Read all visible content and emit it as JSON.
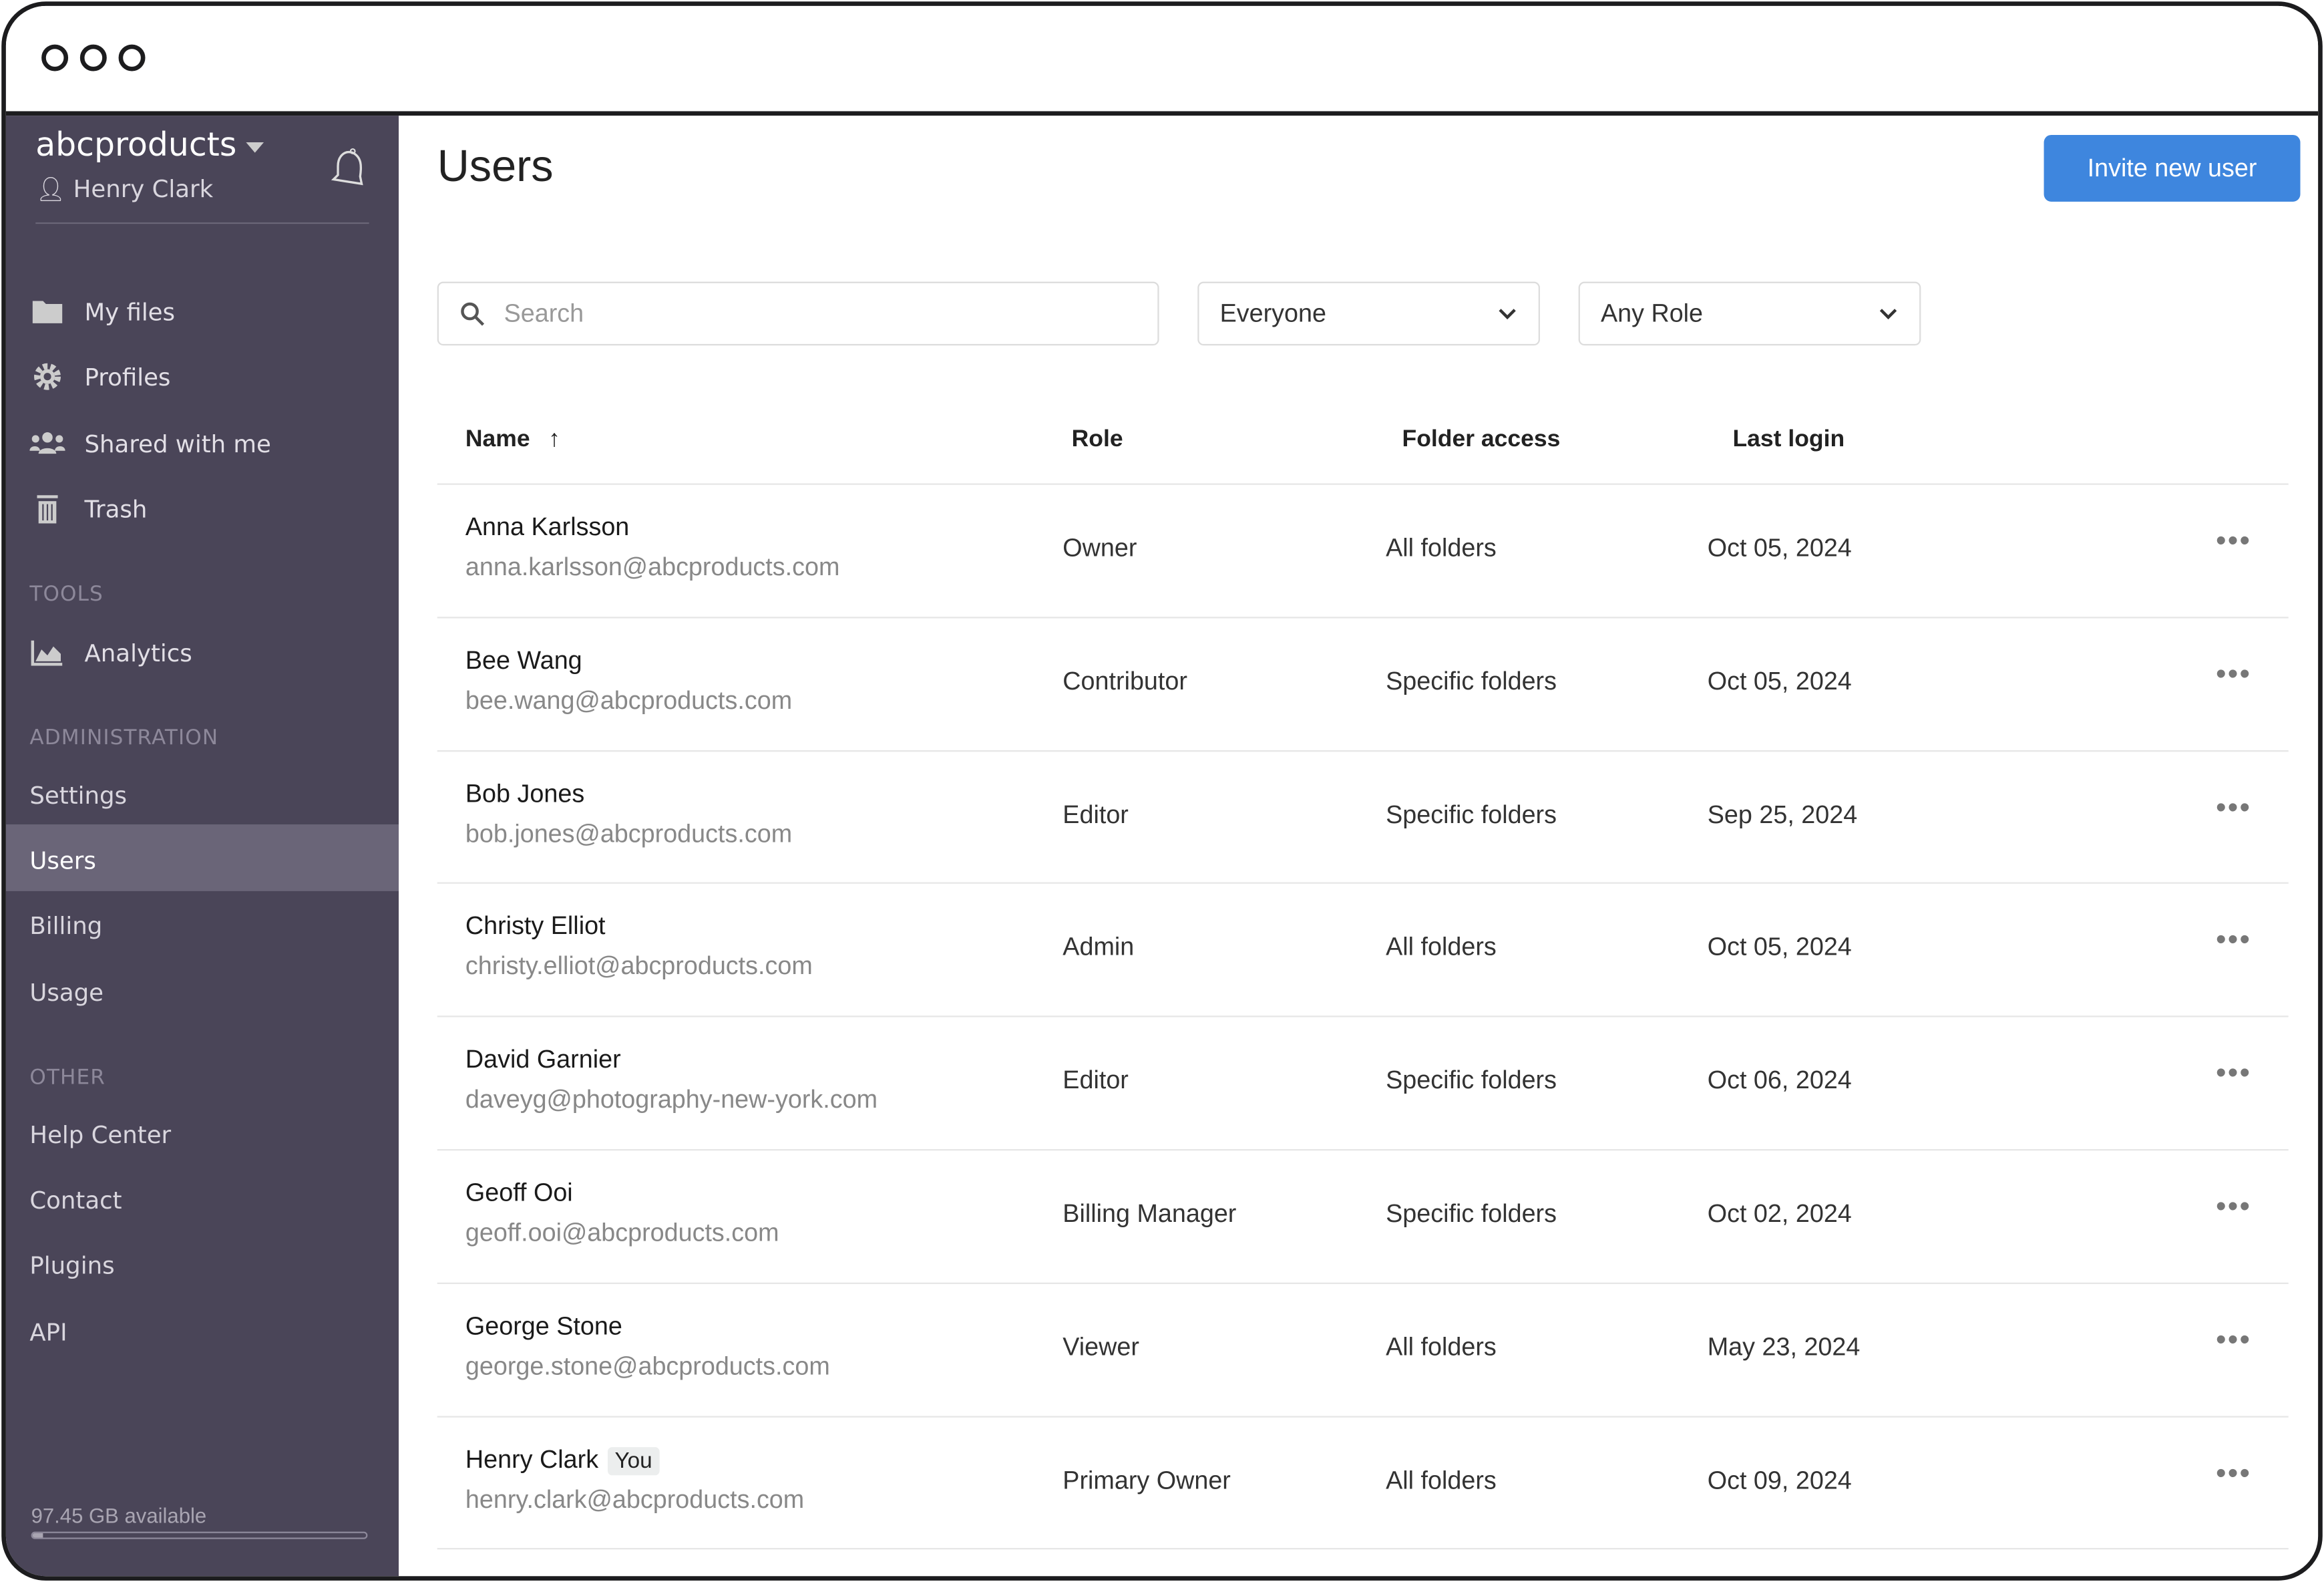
{
  "sidebar": {
    "org": "abcproducts",
    "user": "Henry Clark",
    "nav": [
      {
        "label": "My files",
        "icon": "folder-icon"
      },
      {
        "label": "Profiles",
        "icon": "gear-icon"
      },
      {
        "label": "Shared with me",
        "icon": "users-icon"
      },
      {
        "label": "Trash",
        "icon": "trash-icon"
      }
    ],
    "tools_heading": "TOOLS",
    "tools": [
      {
        "label": "Analytics",
        "icon": "chart-icon"
      }
    ],
    "admin_heading": "ADMINISTRATION",
    "admin": [
      "Settings",
      "Users",
      "Billing",
      "Usage"
    ],
    "active": "Users",
    "other_heading": "OTHER",
    "other": [
      "Help Center",
      "Contact",
      "Plugins",
      "API"
    ],
    "storage": "97.45 GB available",
    "storage_used_percent": 3
  },
  "main": {
    "title": "Users",
    "invite_label": "Invite new user",
    "search_placeholder": "Search",
    "filter_group": "Everyone",
    "filter_role": "Any Role",
    "columns": [
      "Name",
      "Role",
      "Folder access",
      "Last login"
    ],
    "sort": "Name ascending",
    "rows": [
      {
        "name": "Anna Karlsson",
        "email": "anna.karlsson@abcproducts.com",
        "role": "Owner",
        "access": "All folders",
        "login": "Oct 05, 2024"
      },
      {
        "name": "Bee Wang",
        "email": "bee.wang@abcproducts.com",
        "role": "Contributor",
        "access": "Specific folders",
        "login": "Oct 05, 2024"
      },
      {
        "name": "Bob Jones",
        "email": "bob.jones@abcproducts.com",
        "role": "Editor",
        "access": "Specific folders",
        "login": "Sep 25, 2024"
      },
      {
        "name": "Christy Elliot",
        "email": "christy.elliot@abcproducts.com",
        "role": "Admin",
        "access": "All folders",
        "login": "Oct 05, 2024"
      },
      {
        "name": "David Garnier",
        "email": "daveyg@photography-new-york.com",
        "role": "Editor",
        "access": "Specific folders",
        "login": "Oct 06, 2024"
      },
      {
        "name": "Geoff Ooi",
        "email": "geoff.ooi@abcproducts.com",
        "role": "Billing Manager",
        "access": "Specific folders",
        "login": "Oct 02, 2024"
      },
      {
        "name": "George Stone",
        "email": "george.stone@abcproducts.com",
        "role": "Viewer",
        "access": "All folders",
        "login": "May 23, 2024"
      },
      {
        "name": "Henry Clark",
        "badge": "You",
        "email": "henry.clark@abcproducts.com",
        "role": "Primary Owner",
        "access": "All folders",
        "login": "Oct 09, 2024"
      }
    ]
  },
  "colors": {
    "sidebar": "#4a4558",
    "active": "#6a6578",
    "accent": "#3e86de"
  }
}
